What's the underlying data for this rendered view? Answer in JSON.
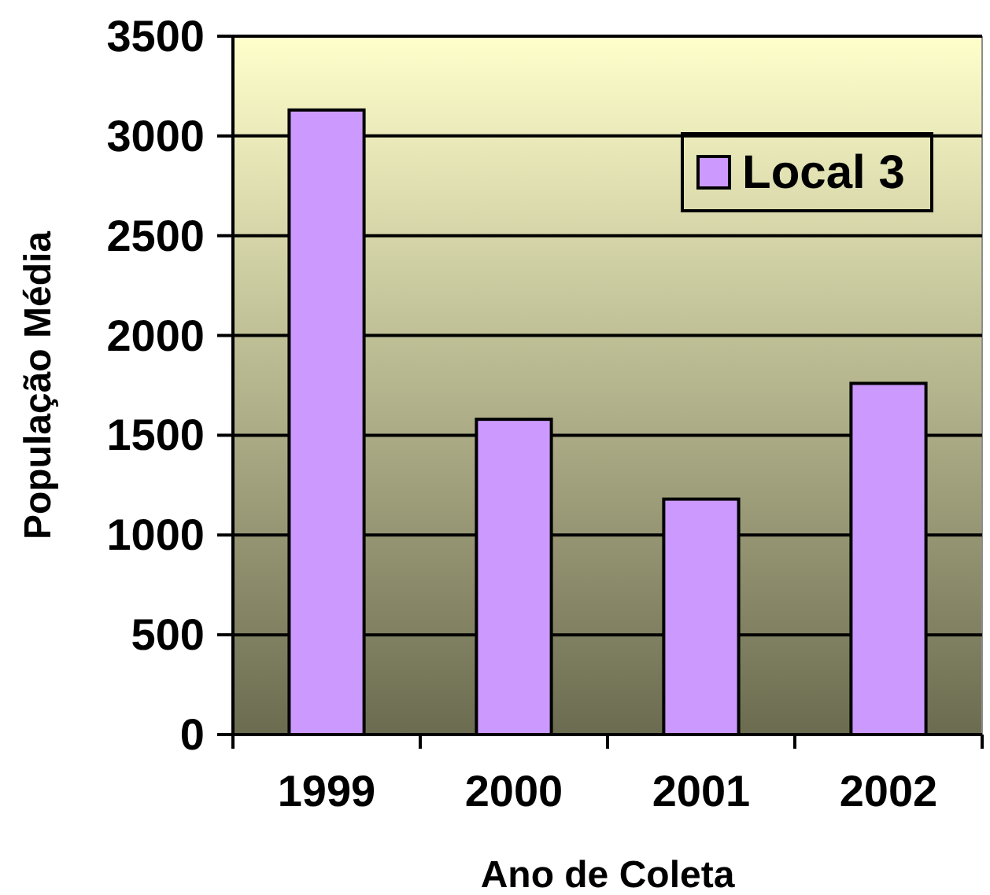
{
  "chart_data": {
    "type": "bar",
    "xlabel": "Ano de Coleta",
    "ylabel": "População Média",
    "categories": [
      "1999",
      "2000",
      "2001",
      "2002"
    ],
    "series": [
      {
        "name": "Local 3",
        "color": "#cc99ff",
        "values": [
          3130,
          1580,
          1180,
          1760
        ]
      }
    ],
    "ylim": [
      0,
      3500
    ],
    "yticks": [
      0,
      500,
      1000,
      1500,
      2000,
      2500,
      3000,
      3500
    ],
    "grid": "y",
    "legend": "top right"
  }
}
